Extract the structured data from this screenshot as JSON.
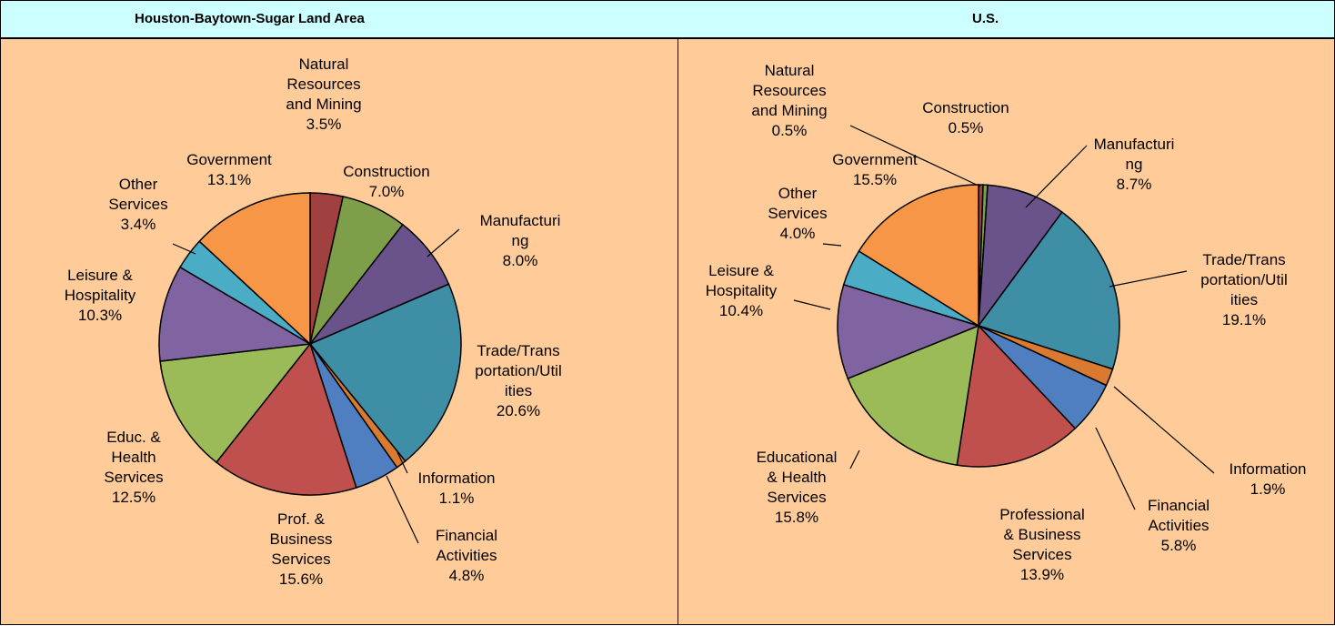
{
  "chart_data": [
    {
      "type": "pie",
      "title": "Houston-Baytown-Sugar Land Area",
      "categories": [
        "Natural Resources and Mining",
        "Construction",
        "Manufacturing",
        "Trade/Transportation/Utilities",
        "Information",
        "Financial Activities",
        "Prof. & Business Services",
        "Educ. & Health Services",
        "Leisure & Hospitality",
        "Other Services",
        "Government"
      ],
      "values": [
        3.5,
        7.0,
        8.0,
        20.6,
        1.1,
        4.8,
        15.6,
        12.5,
        10.3,
        3.4,
        13.1
      ],
      "value_labels": [
        "3.5%",
        "7.0%",
        "8.0%",
        "20.6%",
        "1.1%",
        "4.8%",
        "15.6%",
        "12.5%",
        "10.3%",
        "3.4%",
        "13.1%"
      ],
      "colors": [
        "#A0403F",
        "#7F9E4A",
        "#6A528A",
        "#3E8FA5",
        "#D97A30",
        "#4F7FC0",
        "#C0504D",
        "#9BBB59",
        "#8064A2",
        "#4BACC6",
        "#F79646"
      ]
    },
    {
      "type": "pie",
      "title": "U.S.",
      "categories": [
        "Natural Resources and Mining",
        "Construction",
        "Manufacturing",
        "Trade/Transportation/Utilities",
        "Information",
        "Financial Activities",
        "Professional & Business Services",
        "Educational & Health Services",
        "Leisure & Hospitality",
        "Other Services",
        "Government"
      ],
      "values": [
        0.5,
        0.5,
        8.7,
        19.1,
        1.9,
        5.8,
        13.9,
        15.8,
        10.4,
        4.0,
        15.5
      ],
      "value_labels": [
        "0.5%",
        "0.5%",
        "8.7%",
        "19.1%",
        "1.9%",
        "5.8%",
        "13.9%",
        "15.8%",
        "10.4%",
        "4.0%",
        "15.5%"
      ],
      "colors": [
        "#A0403F",
        "#7F9E4A",
        "#6A528A",
        "#3E8FA5",
        "#D97A30",
        "#4F7FC0",
        "#C0504D",
        "#9BBB59",
        "#8064A2",
        "#4BACC6",
        "#F79646"
      ]
    }
  ]
}
